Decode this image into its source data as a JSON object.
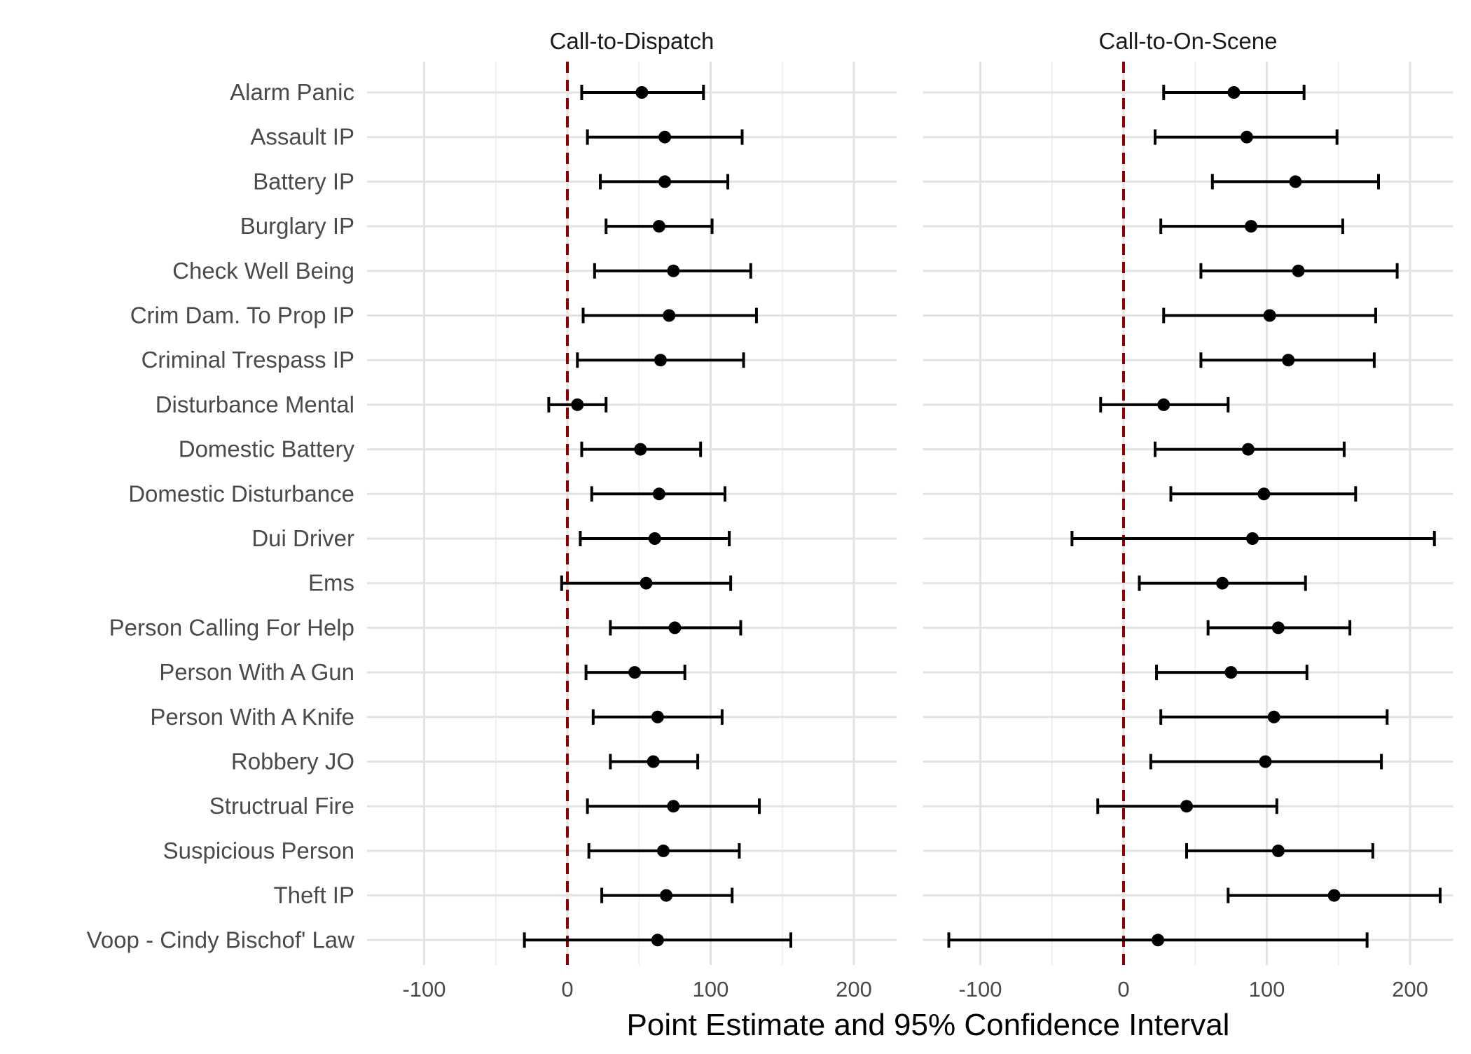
{
  "chart_data": {
    "type": "scatter",
    "subtype": "forest-plot",
    "xlabel": "Point Estimate and 95% Confidence Interval",
    "ylabel": "",
    "xlim": [
      -140,
      230
    ],
    "x_ticks": [
      -100,
      0,
      100,
      200
    ],
    "x_tick_labels": [
      "-100",
      "0",
      "100",
      "200"
    ],
    "reference_line": {
      "x": 0,
      "style": "dashed",
      "color": "#8b0000"
    },
    "grid": true,
    "legend": "none",
    "categories": [
      "Alarm Panic",
      "Assault IP",
      "Battery IP",
      "Burglary IP",
      "Check Well Being",
      "Crim Dam. To Prop IP",
      "Criminal Trespass IP",
      "Disturbance Mental",
      "Domestic Battery",
      "Domestic Disturbance",
      "Dui Driver",
      "Ems",
      "Person Calling For Help",
      "Person With A Gun",
      "Person With A Knife",
      "Robbery JO",
      "Structrual Fire",
      "Suspicious Person",
      "Theft IP",
      "Voop - Cindy Bischof' Law"
    ],
    "panels": [
      {
        "title": "Call-to-Dispatch",
        "estimate": [
          52,
          68,
          68,
          64,
          74,
          71,
          65,
          7,
          51,
          64,
          61,
          55,
          75,
          47,
          63,
          60,
          74,
          67,
          69,
          63
        ],
        "lower": [
          10,
          14,
          23,
          27,
          19,
          11,
          7,
          -13,
          10,
          17,
          9,
          -4,
          30,
          13,
          18,
          30,
          14,
          15,
          24,
          -30
        ],
        "upper": [
          95,
          122,
          112,
          101,
          128,
          132,
          123,
          27,
          93,
          110,
          113,
          114,
          121,
          82,
          108,
          91,
          134,
          120,
          115,
          156
        ]
      },
      {
        "title": "Call-to-On-Scene",
        "estimate": [
          77,
          86,
          120,
          89,
          122,
          102,
          115,
          28,
          87,
          98,
          90,
          69,
          108,
          75,
          105,
          99,
          44,
          108,
          147,
          24
        ],
        "lower": [
          28,
          22,
          62,
          26,
          54,
          28,
          54,
          -16,
          22,
          33,
          -36,
          11,
          59,
          23,
          26,
          19,
          -18,
          44,
          73,
          -122
        ],
        "upper": [
          126,
          149,
          178,
          153,
          191,
          176,
          175,
          73,
          154,
          162,
          217,
          127,
          158,
          128,
          184,
          180,
          107,
          174,
          221,
          170
        ]
      }
    ]
  }
}
